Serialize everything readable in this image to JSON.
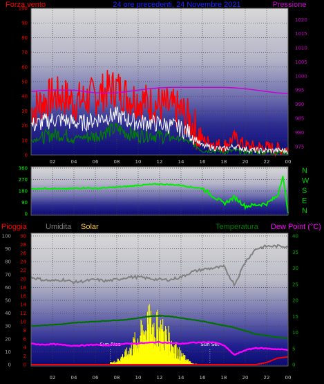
{
  "header": {
    "left_title": "Forza vento",
    "center_title": "24 ore precedenti, 24 Novembre 2021",
    "right_title": "Pressione"
  },
  "colors": {
    "wind_speed": "#ff0000",
    "wind_avg": "#ffffff",
    "wind_gust_low": "#008000",
    "pressure": "#cc00cc",
    "direction": "#00ee00",
    "humidity": "#808080",
    "temperature": "#007000",
    "dew_point": "#ff00ff",
    "rain": "#ff0000",
    "solar": "#ffff00",
    "title_blue": "#2222ff"
  },
  "x_ticks": [
    "02",
    "04",
    "06",
    "08",
    "10",
    "12",
    "14",
    "16",
    "18",
    "20",
    "22",
    "00"
  ],
  "direction_labels": [
    "N",
    "W",
    "S",
    "E",
    "N"
  ],
  "bottom_labels": {
    "rain": "Pioggia",
    "humidity": "Umidita",
    "solar": "Solar",
    "temperature": "Temperatura",
    "dew_point": "Dew Point (°C)",
    "sunrise": "Sun Rise",
    "sunset": "Sun Set"
  },
  "chart_data": [
    {
      "type": "line",
      "title": "Forza vento",
      "y_ticks_left": [
        0,
        10,
        20,
        30,
        40,
        50,
        60,
        70,
        80,
        90,
        100
      ],
      "y_ticks_right": [
        975,
        980,
        985,
        990,
        995,
        1000,
        1005,
        1010,
        1015,
        1020
      ],
      "ylim": [
        0,
        100
      ],
      "ylim_right": [
        972,
        1024
      ],
      "grid": true,
      "x_hours": [
        0,
        1,
        2,
        3,
        4,
        5,
        6,
        7,
        8,
        9,
        10,
        11,
        12,
        13,
        14,
        15,
        16,
        17,
        18,
        19,
        20,
        21,
        22,
        23,
        24
      ],
      "series": [
        {
          "name": "Forza vento",
          "axis": "left",
          "values": [
            30,
            36,
            40,
            40,
            36,
            38,
            40,
            44,
            46,
            40,
            38,
            35,
            34,
            32,
            30,
            22,
            10,
            8,
            6,
            12,
            6,
            5,
            5,
            4,
            4
          ]
        },
        {
          "name": "",
          "axis": "left",
          "values": [
            20,
            22,
            24,
            24,
            22,
            22,
            24,
            26,
            27,
            24,
            22,
            22,
            21,
            20,
            18,
            14,
            6,
            5,
            4,
            6,
            4,
            3,
            3,
            3,
            3
          ]
        },
        {
          "name": "",
          "axis": "left",
          "values": [
            10,
            12,
            14,
            14,
            12,
            12,
            13,
            16,
            18,
            15,
            13,
            14,
            13,
            12,
            11,
            8,
            3,
            3,
            2,
            3,
            2,
            2,
            2,
            2,
            2
          ]
        },
        {
          "name": "Pressione",
          "axis": "right",
          "values": [
            994.5,
            994.8,
            995,
            995,
            995,
            994.5,
            994,
            994,
            994,
            994.5,
            995,
            995.5,
            995.8,
            996,
            996,
            996,
            996,
            996,
            996,
            995.8,
            995.5,
            995,
            994.5,
            994,
            993.8
          ]
        }
      ]
    },
    {
      "type": "line",
      "title": "",
      "y_ticks": [
        0,
        90,
        180,
        270,
        360
      ],
      "ylim": [
        0,
        360
      ],
      "grid": true,
      "x_hours": [
        0,
        1,
        2,
        3,
        4,
        5,
        6,
        7,
        8,
        9,
        10,
        11,
        12,
        13,
        14,
        15,
        16,
        17,
        18,
        19,
        20,
        21,
        22,
        23,
        23.5,
        24
      ],
      "series": [
        {
          "name": "",
          "values": [
            195,
            200,
            200,
            195,
            200,
            205,
            200,
            205,
            210,
            215,
            225,
            230,
            235,
            230,
            225,
            210,
            200,
            140,
            80,
            130,
            60,
            70,
            80,
            140,
            300,
            20
          ]
        }
      ]
    },
    {
      "type": "line",
      "title": "",
      "y_ticks_left_outer": [
        0,
        10,
        20,
        30,
        40,
        50,
        60,
        70,
        80,
        90,
        100
      ],
      "y_ticks_left_inner": [
        0,
        2,
        4,
        6,
        8,
        10,
        12,
        14,
        16,
        18,
        20,
        22,
        24,
        26,
        28,
        30
      ],
      "y_ticks_right": [
        0,
        5,
        10,
        15,
        20,
        25,
        30,
        35,
        40
      ],
      "ylim": [
        0,
        100
      ],
      "ylim_right": [
        0,
        40
      ],
      "grid": true,
      "sunrise_hour": 7.4,
      "sunset_hour": 16.7,
      "x_hours": [
        0,
        1,
        2,
        3,
        4,
        5,
        6,
        7,
        8,
        9,
        10,
        11,
        12,
        13,
        14,
        15,
        16,
        17,
        18,
        19,
        20,
        21,
        22,
        23,
        24
      ],
      "series": [
        {
          "name": "Umidita",
          "axis": "left",
          "values": [
            68,
            66,
            65,
            66,
            64,
            65,
            66,
            65,
            66,
            68,
            68,
            67,
            66,
            66,
            68,
            72,
            74,
            75,
            76,
            62,
            80,
            90,
            92,
            92,
            92
          ]
        },
        {
          "name": "Solar",
          "axis": "left",
          "values": [
            0,
            0,
            0,
            0,
            0,
            0,
            0,
            0,
            3,
            10,
            22,
            34,
            30,
            20,
            8,
            1,
            0,
            0,
            0,
            0,
            0,
            0,
            0,
            0,
            0
          ]
        },
        {
          "name": "Temperatura",
          "axis": "right",
          "values": [
            12,
            12.2,
            12.4,
            12.6,
            13,
            13.2,
            13.4,
            13.6,
            13.8,
            14,
            14.5,
            15,
            15.2,
            15,
            14.5,
            14,
            13.5,
            12.8,
            12.2,
            11.5,
            10.5,
            9.5,
            9,
            8.5,
            8.2
          ]
        },
        {
          "name": "Dew Point (°C)",
          "axis": "right",
          "values": [
            6.5,
            6.2,
            6.4,
            6.1,
            5.9,
            6.0,
            6.2,
            6.0,
            6.3,
            6.5,
            6.6,
            6.8,
            7.0,
            6.7,
            6.5,
            6.8,
            6.9,
            7.0,
            6.0,
            3.0,
            4.5,
            5.2,
            5.0,
            4.8,
            4.6
          ]
        },
        {
          "name": "Pioggia",
          "axis": "left",
          "values": [
            0,
            0,
            0,
            0,
            0,
            0,
            0,
            0,
            0,
            0,
            0,
            0,
            0,
            0,
            0,
            0,
            0,
            0,
            0,
            0,
            0,
            0,
            0.5,
            1.5,
            1.8
          ]
        }
      ]
    }
  ]
}
